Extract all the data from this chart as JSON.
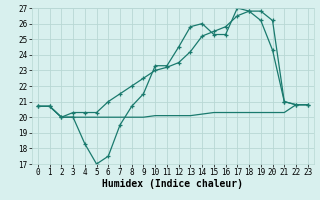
{
  "line1_x": [
    0,
    1,
    2,
    3,
    4,
    5,
    6,
    7,
    8,
    9,
    10,
    11,
    12,
    13,
    14,
    15,
    16,
    17,
    18,
    19,
    20,
    21,
    22,
    23
  ],
  "line1_y": [
    20.7,
    20.7,
    20.0,
    20.0,
    18.3,
    17.0,
    17.5,
    19.5,
    20.7,
    21.5,
    23.3,
    23.3,
    24.5,
    25.8,
    26.0,
    25.3,
    25.3,
    27.0,
    26.8,
    26.2,
    24.3,
    21.0,
    20.8,
    20.8
  ],
  "line2_x": [
    0,
    1,
    2,
    3,
    4,
    5,
    6,
    7,
    8,
    9,
    10,
    11,
    12,
    13,
    14,
    15,
    16,
    17,
    18,
    19,
    20,
    21,
    22,
    23
  ],
  "line2_y": [
    20.7,
    20.7,
    20.0,
    20.3,
    20.3,
    20.3,
    21.0,
    21.5,
    22.0,
    22.5,
    23.0,
    23.2,
    23.5,
    24.2,
    25.2,
    25.5,
    25.8,
    26.5,
    26.8,
    26.8,
    26.2,
    21.0,
    20.8,
    20.8
  ],
  "line3_x": [
    0,
    1,
    2,
    3,
    4,
    5,
    6,
    7,
    8,
    9,
    10,
    11,
    12,
    13,
    14,
    15,
    16,
    17,
    18,
    19,
    20,
    21,
    22,
    23
  ],
  "line3_y": [
    20.7,
    20.7,
    20.0,
    20.0,
    20.0,
    20.0,
    20.0,
    20.0,
    20.0,
    20.0,
    20.1,
    20.1,
    20.1,
    20.1,
    20.2,
    20.3,
    20.3,
    20.3,
    20.3,
    20.3,
    20.3,
    20.3,
    20.8,
    20.8
  ],
  "line_color": "#1a7a6e",
  "bg_color": "#d8f0ee",
  "grid_color": "#b8d8d4",
  "xlabel": "Humidex (Indice chaleur)",
  "ylim": [
    17,
    27
  ],
  "xlim": [
    -0.5,
    23.5
  ],
  "yticks": [
    17,
    18,
    19,
    20,
    21,
    22,
    23,
    24,
    25,
    26,
    27
  ],
  "xticks": [
    0,
    1,
    2,
    3,
    4,
    5,
    6,
    7,
    8,
    9,
    10,
    11,
    12,
    13,
    14,
    15,
    16,
    17,
    18,
    19,
    20,
    21,
    22,
    23
  ],
  "marker": "+",
  "marker_size": 3.5,
  "linewidth": 0.9,
  "xlabel_fontsize": 7,
  "tick_fontsize": 5.5
}
